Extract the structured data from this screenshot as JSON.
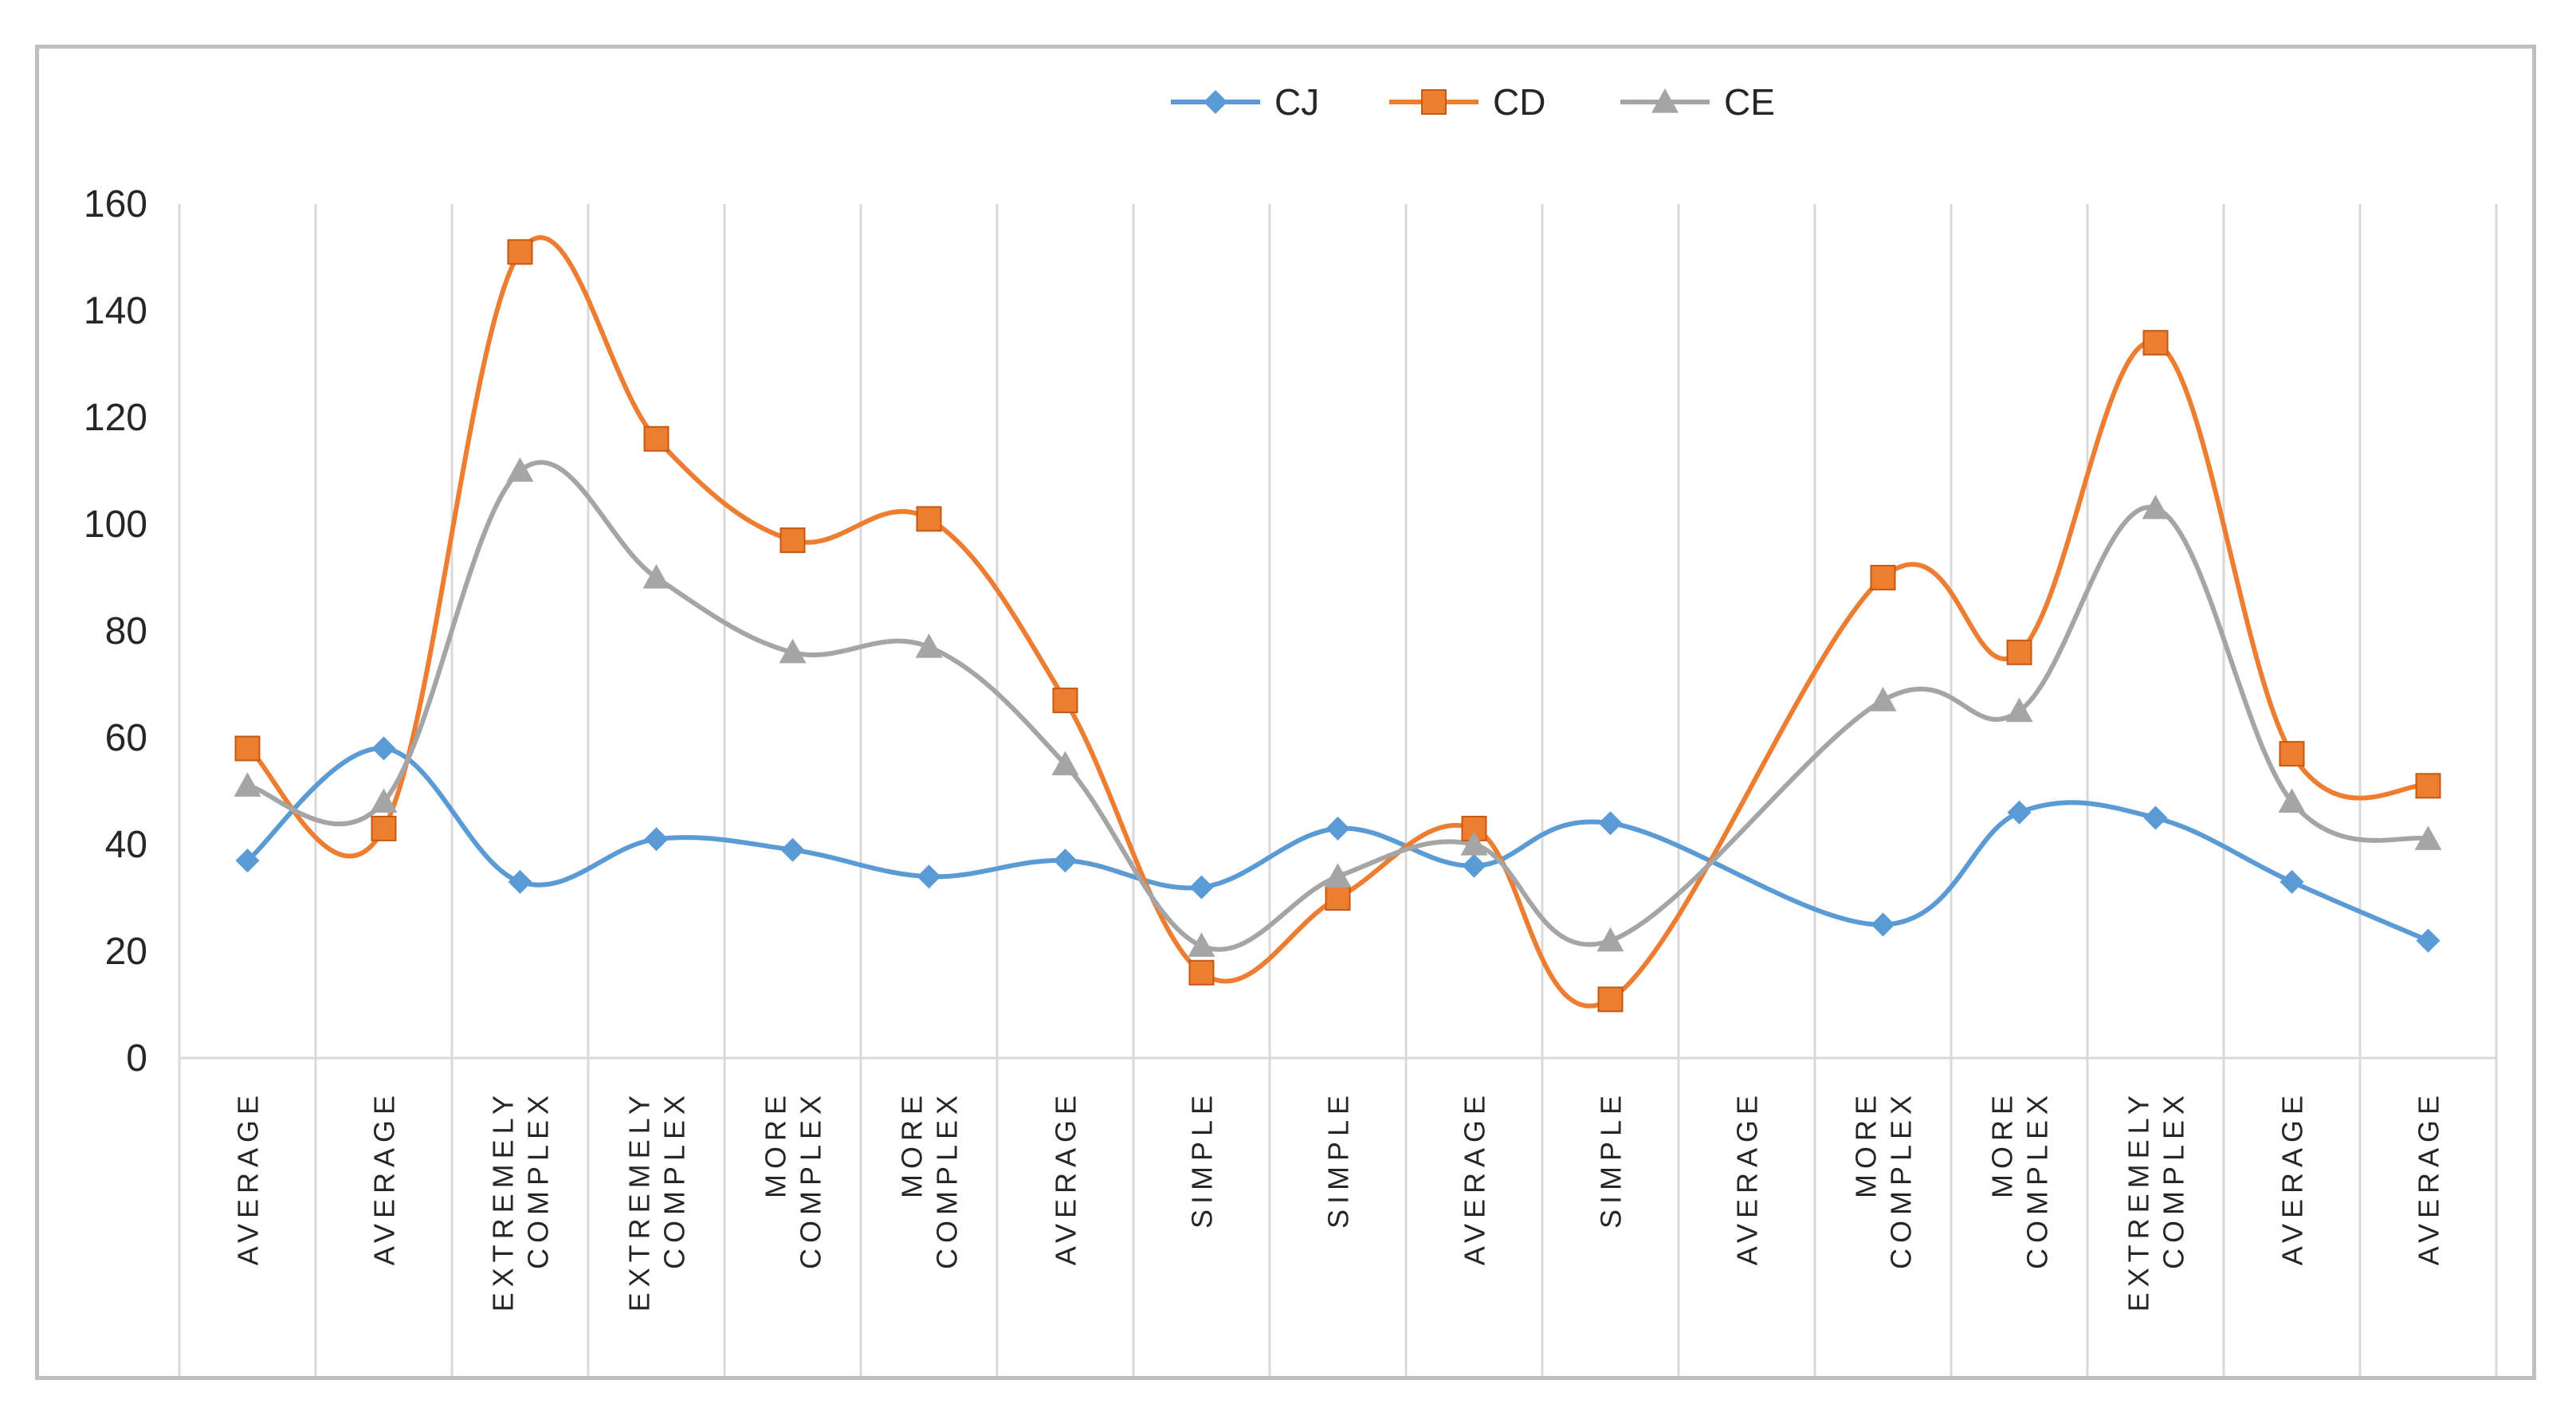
{
  "chart_data": {
    "type": "line",
    "title": "",
    "xlabel": "",
    "ylabel": "",
    "ylim": [
      0,
      160
    ],
    "yticks": [
      0,
      20,
      40,
      60,
      80,
      100,
      120,
      140,
      160
    ],
    "x": [
      "1",
      "2",
      "3",
      "4",
      "5",
      "6",
      "7",
      "8",
      "9",
      "10",
      "11",
      "12",
      "13",
      "14",
      "15",
      "16",
      "17"
    ],
    "categories": [
      [
        "AVERAGE"
      ],
      [
        "AVERAGE"
      ],
      [
        "EXTREMELY",
        "COMPLEX"
      ],
      [
        "EXTREMELY",
        "COMPLEX"
      ],
      [
        "MORE",
        "COMPLEX"
      ],
      [
        "MORE",
        "COMPLEX"
      ],
      [
        "AVERAGE"
      ],
      [
        "SIMPLE"
      ],
      [
        "SIMPLE"
      ],
      [
        "AVERAGE"
      ],
      [
        "SIMPLE"
      ],
      [
        "AVERAGE"
      ],
      [
        "MORE",
        "COMPLEX"
      ],
      [
        "MORE",
        "COMPLEX"
      ],
      [
        "EXTREMELY",
        "COMPLEX"
      ],
      [
        "AVERAGE"
      ],
      [
        "AVERAGE"
      ]
    ],
    "series": [
      {
        "name": "CJ",
        "color": "#5b9bd5",
        "marker": "diamond",
        "values": [
          37,
          58,
          33,
          41,
          39,
          34,
          37,
          32,
          43,
          36,
          44,
          null,
          25,
          46,
          45,
          33,
          22
        ]
      },
      {
        "name": "CD",
        "color": "#ed7d31",
        "marker": "square",
        "values": [
          58,
          43,
          151,
          116,
          97,
          101,
          67,
          16,
          30,
          43,
          11,
          null,
          90,
          76,
          134,
          57,
          51
        ]
      },
      {
        "name": "CE",
        "color": "#a5a5a5",
        "marker": "triangle",
        "values": [
          51,
          48,
          110,
          90,
          76,
          77,
          55,
          21,
          34,
          40,
          22,
          null,
          67,
          65,
          103,
          48,
          41
        ]
      }
    ],
    "legend_position": "top-center",
    "grid": "vertical"
  }
}
